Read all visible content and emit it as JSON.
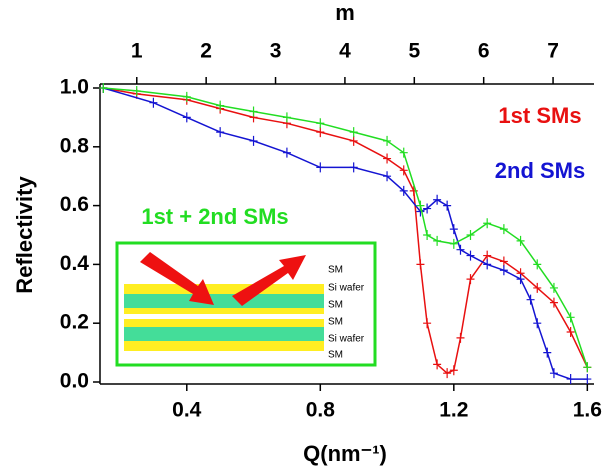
{
  "chart_data": {
    "type": "line",
    "x_label": "Q(nm⁻¹)",
    "y_label": "Reflectivity",
    "x2_label": "m",
    "xlim": [
      0.14,
      1.62
    ],
    "xticks": [
      0.4,
      0.8,
      1.2,
      1.6
    ],
    "ylim": [
      0,
      1
    ],
    "yticks": [
      {
        "value": 0,
        "label": "0.0"
      },
      0.2,
      0.4,
      0.6,
      0.8,
      {
        "value": 1,
        "label": "1.0"
      }
    ],
    "x2lim": [
      0.47,
      7.59
    ],
    "x2ticks": [
      1,
      2,
      3,
      4,
      5,
      6,
      7
    ],
    "series": [
      {
        "name": "1st SMs",
        "color": "#e81010",
        "x": [
          0.15,
          0.25,
          0.4,
          0.5,
          0.6,
          0.7,
          0.8,
          0.9,
          1.0,
          1.05,
          1.08,
          1.1,
          1.12,
          1.15,
          1.18,
          1.2,
          1.22,
          1.25,
          1.3,
          1.35,
          1.4,
          1.45,
          1.5,
          1.55,
          1.6
        ],
        "values": [
          1.0,
          0.98,
          0.96,
          0.93,
          0.9,
          0.88,
          0.85,
          0.82,
          0.76,
          0.72,
          0.65,
          0.4,
          0.2,
          0.06,
          0.03,
          0.04,
          0.15,
          0.35,
          0.43,
          0.41,
          0.37,
          0.32,
          0.27,
          0.17,
          0.05
        ]
      },
      {
        "name": "2nd SMs",
        "color": "#1414d2",
        "x": [
          0.15,
          0.3,
          0.4,
          0.5,
          0.6,
          0.7,
          0.8,
          0.9,
          1.0,
          1.05,
          1.1,
          1.12,
          1.15,
          1.18,
          1.2,
          1.22,
          1.25,
          1.3,
          1.35,
          1.4,
          1.43,
          1.45,
          1.48,
          1.5,
          1.55,
          1.6
        ],
        "values": [
          1.0,
          0.95,
          0.9,
          0.85,
          0.82,
          0.78,
          0.73,
          0.73,
          0.7,
          0.65,
          0.58,
          0.59,
          0.62,
          0.6,
          0.52,
          0.45,
          0.43,
          0.4,
          0.38,
          0.35,
          0.28,
          0.2,
          0.1,
          0.03,
          0.01,
          0.01
        ]
      },
      {
        "name": "1st + 2nd SMs",
        "color": "#22dd22",
        "x": [
          0.15,
          0.25,
          0.4,
          0.5,
          0.6,
          0.7,
          0.8,
          0.9,
          1.0,
          1.05,
          1.1,
          1.12,
          1.15,
          1.2,
          1.25,
          1.3,
          1.35,
          1.4,
          1.45,
          1.5,
          1.55,
          1.6
        ],
        "values": [
          1.0,
          0.99,
          0.97,
          0.94,
          0.92,
          0.9,
          0.88,
          0.85,
          0.82,
          0.78,
          0.6,
          0.5,
          0.48,
          0.47,
          0.5,
          0.54,
          0.52,
          0.48,
          0.4,
          0.32,
          0.22,
          0.05
        ]
      }
    ],
    "inset_labels": [
      "SM",
      "Si wafer",
      "SM",
      "SM",
      "Si wafer",
      "SM"
    ]
  }
}
